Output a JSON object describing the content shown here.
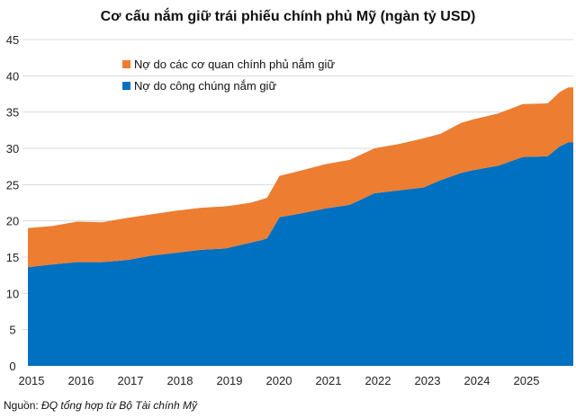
{
  "chart_data": {
    "type": "area",
    "stacked": true,
    "title": "Cơ cấu nắm giữ trái phiếu chính phủ Mỹ (ngàn tỷ USD)",
    "xlabel": "",
    "ylabel": "",
    "ylim": [
      0,
      45
    ],
    "yticks": [
      0,
      5,
      10,
      15,
      20,
      25,
      30,
      35,
      40,
      45
    ],
    "xticks": [
      "2015",
      "2016",
      "2017",
      "2018",
      "2019",
      "2020",
      "2021",
      "2022",
      "2023",
      "2024",
      "2025"
    ],
    "grid": true,
    "legend_position": "top-left",
    "x": [
      "2015-01",
      "2015-07",
      "2016-01",
      "2016-07",
      "2017-01",
      "2017-07",
      "2018-01",
      "2018-07",
      "2019-01",
      "2019-07",
      "2019-10",
      "2019-11",
      "2020-02",
      "2020-07",
      "2021-01",
      "2021-07",
      "2022-01",
      "2022-07",
      "2023-01",
      "2023-05",
      "2023-10",
      "2024-01",
      "2024-07",
      "2025-01",
      "2025-07",
      "2025-10",
      "2025-12"
    ],
    "series": [
      {
        "name": "Nợ do công chúng nắm giữ",
        "color": "#0070C0",
        "values": [
          13.6,
          14.0,
          14.3,
          14.3,
          14.6,
          15.2,
          15.6,
          16.0,
          16.2,
          17.0,
          17.4,
          17.6,
          20.5,
          21.0,
          21.7,
          22.2,
          23.8,
          24.2,
          24.6,
          25.6,
          26.6,
          27.0,
          27.6,
          28.8,
          28.9,
          30.3,
          30.8
        ]
      },
      {
        "name": "Nợ do các cơ quan chính phủ nắm giữ",
        "color": "#ED7D31",
        "values": [
          5.4,
          5.3,
          5.6,
          5.5,
          5.8,
          5.7,
          5.8,
          5.8,
          5.8,
          5.5,
          5.6,
          5.6,
          5.7,
          5.9,
          6.1,
          6.2,
          6.2,
          6.4,
          6.8,
          6.4,
          6.9,
          7.0,
          7.2,
          7.3,
          7.3,
          7.5,
          7.6
        ]
      }
    ]
  },
  "source": {
    "label": "Nguồn:",
    "text": "ĐQ tổng hợp từ Bộ Tài chính Mỹ"
  }
}
